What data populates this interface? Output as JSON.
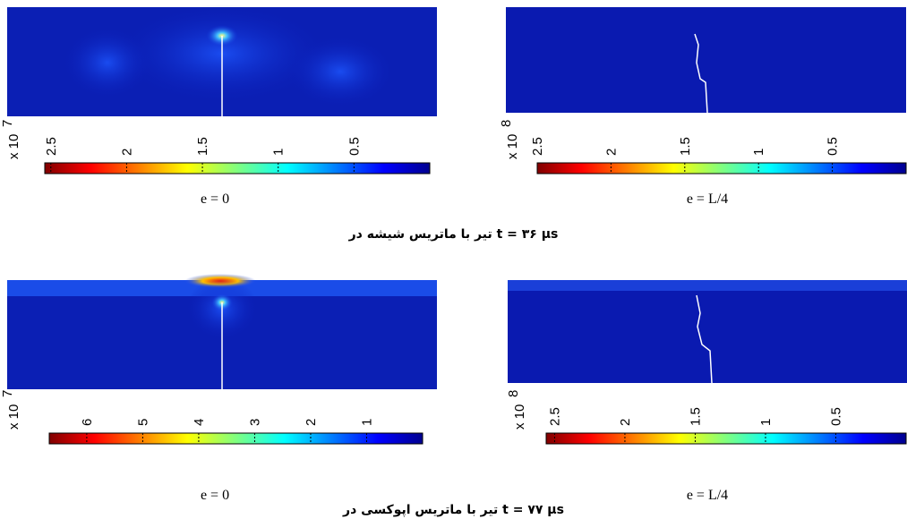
{
  "panels": [
    {
      "colorbar": {
        "exponent_base": "x 10",
        "exponent": "7",
        "range": [
          2.54,
          0
        ],
        "ticks": [
          2.5,
          2,
          1.5,
          1,
          0.5
        ]
      },
      "label": "e = 0"
    },
    {
      "colorbar": {
        "exponent_base": "x 10",
        "exponent": "8",
        "range": [
          2.5,
          0
        ],
        "ticks": [
          2.5,
          2,
          1.5,
          1,
          0.5
        ]
      },
      "label": "e = L/4"
    },
    {
      "colorbar": {
        "exponent_base": "x 10",
        "exponent": "7",
        "range": [
          6.67,
          0
        ],
        "ticks": [
          6,
          5,
          4,
          3,
          2,
          1
        ]
      },
      "label": "e = 0"
    },
    {
      "colorbar": {
        "exponent_base": "x 10",
        "exponent": "8",
        "range": [
          2.56,
          0
        ],
        "ticks": [
          2.5,
          2,
          1.5,
          1,
          0.5
        ]
      },
      "label": "e = L/4"
    }
  ],
  "captions": [
    {
      "text": "تیر با ماتریس شیشه در",
      "time": "t = ۳۶ µs"
    },
    {
      "text": "تیر با ماتریس اپوکسی در",
      "time": "t = ۷۷ µs"
    }
  ]
}
